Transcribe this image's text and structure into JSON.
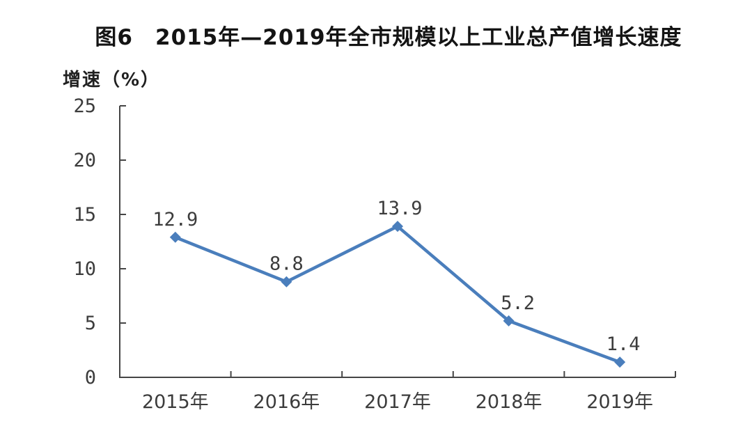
{
  "title": {
    "figure_label": "图6",
    "text": "2015年—2019年全市规模以上工业总产值增长速度"
  },
  "y_axis_title": "增速（%）",
  "colors": {
    "line": "#4a7ebc",
    "axis": "#454545",
    "text": "#3c3c3c",
    "title_text": "#141414",
    "background": "#ffffff"
  },
  "chart_data": {
    "type": "line",
    "title": "图6 2015年—2019年全市规模以上工业总产值增长速度",
    "xlabel": "",
    "ylabel": "增速（%）",
    "categories": [
      "2015年",
      "2016年",
      "2017年",
      "2018年",
      "2019年"
    ],
    "values": [
      12.9,
      8.8,
      13.9,
      5.2,
      1.4
    ],
    "labels": [
      "12.9",
      "8.8",
      "13.9",
      "5.2",
      "1.4"
    ],
    "yticks": [
      0,
      5,
      10,
      15,
      20,
      25
    ],
    "ylim": [
      0,
      25
    ],
    "grid": false,
    "legend": "none",
    "marker": "diamond",
    "line_color": "#4a7ebc",
    "axis_color": "#454545",
    "text_color": "#3c3c3c"
  }
}
